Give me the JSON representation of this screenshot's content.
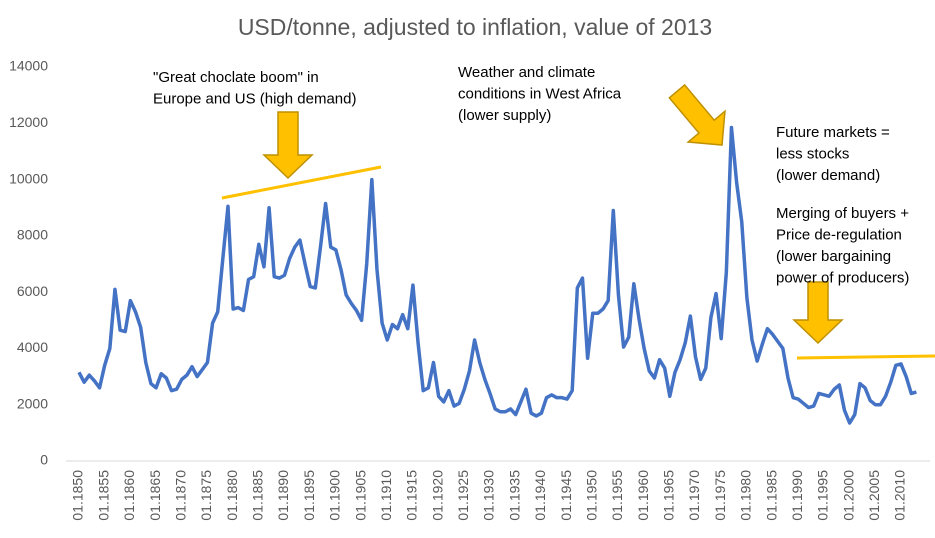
{
  "chart_data": {
    "type": "line",
    "title": "USD/tonne, adjusted to inflation, value of 2013",
    "color": "#4472C4",
    "categories": [
      "01.1850",
      null,
      null,
      null,
      null,
      "01.1855",
      null,
      null,
      null,
      null,
      "01.1860",
      null,
      null,
      null,
      null,
      "01.1865",
      null,
      null,
      null,
      null,
      "01.1870",
      null,
      null,
      null,
      null,
      "01.1875",
      null,
      null,
      null,
      null,
      "01.1880",
      null,
      null,
      null,
      null,
      "01.1885",
      null,
      null,
      null,
      null,
      "01.1890",
      null,
      null,
      null,
      null,
      "01.1895",
      null,
      null,
      null,
      null,
      "01.1900",
      null,
      null,
      null,
      null,
      "01.1905",
      null,
      null,
      null,
      null,
      "01.1910",
      null,
      null,
      null,
      null,
      "01.1915",
      null,
      null,
      null,
      null,
      "01.1920",
      null,
      null,
      null,
      null,
      "01.1925",
      null,
      null,
      null,
      null,
      "01.1930",
      null,
      null,
      null,
      null,
      "01.1935",
      null,
      null,
      null,
      null,
      "01.1940",
      null,
      null,
      null,
      null,
      "01.1945",
      null,
      null,
      null,
      null,
      "01.1950",
      null,
      null,
      null,
      null,
      "01.1955",
      null,
      null,
      null,
      null,
      "01.1960",
      null,
      null,
      null,
      null,
      "01.1965",
      null,
      null,
      null,
      null,
      "01.1970",
      null,
      null,
      null,
      null,
      "01.1975",
      null,
      null,
      null,
      null,
      "01.1980",
      null,
      null,
      null,
      null,
      "01.1985",
      null,
      null,
      null,
      null,
      "01.1990",
      null,
      null,
      null,
      null,
      "01.1995",
      null,
      null,
      null,
      null,
      "01.2000",
      null,
      null,
      null,
      null,
      "01.2005",
      null,
      null,
      null,
      null,
      "01.2010",
      null,
      null,
      null
    ],
    "values": [
      3150,
      2800,
      3050,
      2850,
      2600,
      3400,
      4000,
      6100,
      4650,
      4600,
      5700,
      5300,
      4750,
      3500,
      2750,
      2600,
      3100,
      2950,
      2500,
      2550,
      2900,
      3050,
      3350,
      3000,
      3250,
      3500,
      4900,
      5300,
      7200,
      9050,
      5400,
      5450,
      5350,
      6450,
      6550,
      7700,
      6900,
      9000,
      6550,
      6500,
      6600,
      7200,
      7600,
      7850,
      7000,
      6200,
      6150,
      7600,
      9150,
      7600,
      7500,
      6800,
      5900,
      5600,
      5350,
      5000,
      7000,
      10000,
      6800,
      4900,
      4300,
      4850,
      4700,
      5200,
      4700,
      6250,
      4200,
      2500,
      2600,
      3500,
      2300,
      2100,
      2500,
      1950,
      2050,
      2550,
      3200,
      4300,
      3500,
      2900,
      2400,
      1850,
      1750,
      1750,
      1850,
      1650,
      2100,
      2550,
      1700,
      1600,
      1700,
      2250,
      2350,
      2250,
      2250,
      2200,
      2500,
      6150,
      6500,
      3650,
      5250,
      5250,
      5400,
      5700,
      8900,
      5900,
      4050,
      4400,
      6300,
      5050,
      4000,
      3200,
      2950,
      3600,
      3300,
      2300,
      3150,
      3600,
      4200,
      5150,
      3700,
      2900,
      3300,
      5100,
      5950,
      4350,
      6700,
      11850,
      9900,
      8500,
      5800,
      4300,
      3550,
      4150,
      4700,
      4500,
      4250,
      4000,
      2950,
      2250,
      2200,
      2050,
      1900,
      1950,
      2400,
      2350,
      2300,
      2550,
      2700,
      1800,
      1350,
      1650,
      2750,
      2600,
      2150,
      2000,
      2000,
      2300,
      2800,
      3400,
      3450,
      3000,
      2400,
      2450
    ],
    "ylim": [
      0,
      14000
    ],
    "yticks": [
      0,
      2000,
      4000,
      6000,
      8000,
      10000,
      12000,
      14000
    ],
    "annotations": [
      {
        "lines": [
          "\"Great choclate boom\" in",
          "Europe and US (high demand)"
        ]
      },
      {
        "lines": [
          "Weather and climate",
          "conditions in West Africa",
          "(lower supply)"
        ]
      },
      {
        "lines": [
          "Future markets =",
          "less stocks",
          "(lower demand)"
        ]
      },
      {
        "lines": [
          "Merging of buyers +",
          "Price de-regulation",
          "(lower bargaining",
          "power of producers)"
        ]
      }
    ]
  }
}
